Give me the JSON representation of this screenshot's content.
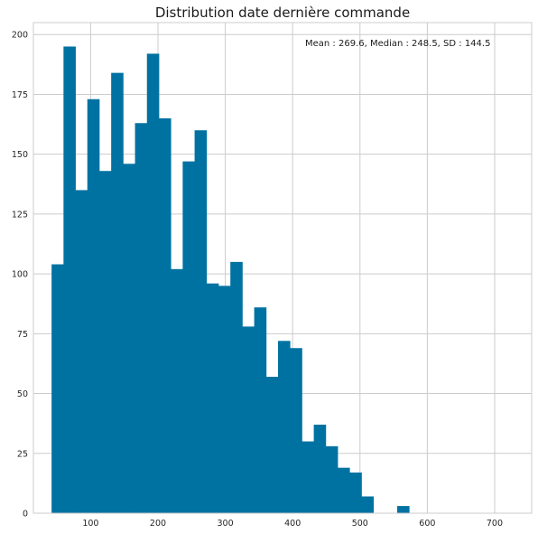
{
  "chart_data": {
    "type": "bar",
    "title": "Distribution date dernière commande",
    "annotation": "Mean : 269.6, Median :  248.5, SD :  144.5",
    "xlabel": "",
    "ylabel": "",
    "bins": {
      "start": 42,
      "width": 17.7,
      "counts": [
        104,
        195,
        135,
        173,
        143,
        184,
        146,
        163,
        192,
        165,
        102,
        147,
        160,
        96,
        95,
        105,
        78,
        86,
        57,
        72,
        69,
        30,
        37,
        28,
        19,
        17,
        7,
        0,
        0,
        3
      ]
    },
    "xlim": [
      15,
      755
    ],
    "ylim": [
      0,
      205
    ],
    "xticks": [
      100,
      200,
      300,
      400,
      500,
      600,
      700
    ],
    "yticks": [
      0,
      25,
      50,
      75,
      100,
      125,
      150,
      175,
      200
    ],
    "xtick_labels": [
      "100",
      "200",
      "300",
      "400",
      "500",
      "600",
      "700"
    ],
    "ytick_labels": [
      "0",
      "25",
      "50",
      "75",
      "100",
      "125",
      "150",
      "175",
      "200"
    ],
    "bar_color": "#0072a2",
    "grid": true,
    "grid_color": "#cccccc",
    "legend": "none"
  }
}
